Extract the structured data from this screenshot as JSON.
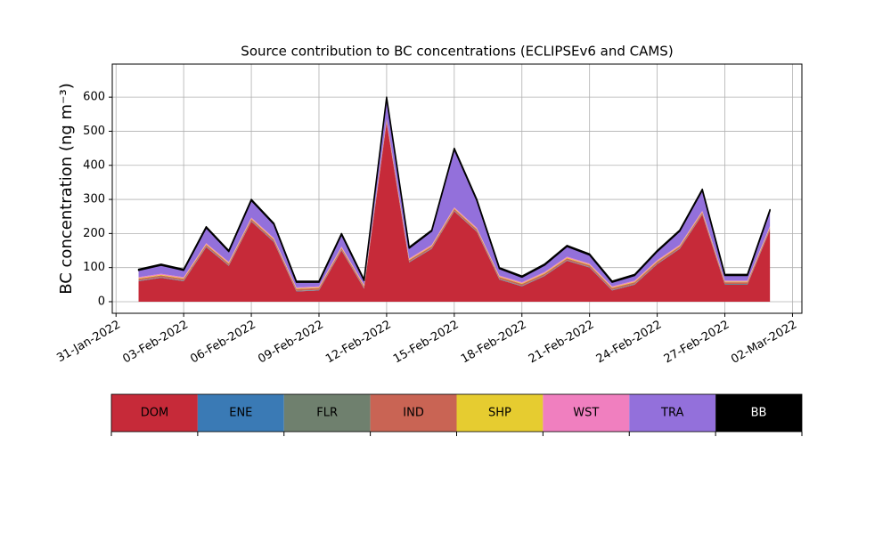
{
  "chart_data": {
    "type": "stacked_area",
    "title": "Source contribution to BC concentrations (ECLIPSEv6 and CAMS)",
    "ylabel": "BC concentration (ng m⁻³)",
    "x": [
      "2022-02-01",
      "2022-02-02",
      "2022-02-03",
      "2022-02-04",
      "2022-02-05",
      "2022-02-06",
      "2022-02-07",
      "2022-02-08",
      "2022-02-09",
      "2022-02-10",
      "2022-02-11",
      "2022-02-12",
      "2022-02-13",
      "2022-02-14",
      "2022-02-15",
      "2022-02-16",
      "2022-02-17",
      "2022-02-18",
      "2022-02-19",
      "2022-02-20",
      "2022-02-21",
      "2022-02-22",
      "2022-02-23",
      "2022-02-24",
      "2022-02-25",
      "2022-02-26",
      "2022-02-27",
      "2022-02-28",
      "2022-03-01"
    ],
    "series": [
      {
        "name": "DOM",
        "color": "#c62a39",
        "values": [
          60,
          70,
          60,
          160,
          105,
          235,
          175,
          30,
          33,
          150,
          38,
          525,
          115,
          155,
          265,
          205,
          65,
          45,
          75,
          120,
          100,
          33,
          50,
          110,
          155,
          255,
          50,
          50,
          210
        ]
      },
      {
        "name": "ENE",
        "color": "#3a7ab5",
        "values": [
          1,
          1,
          1,
          1,
          1,
          1,
          1,
          1,
          1,
          1,
          1,
          1,
          1,
          1,
          1,
          1,
          1,
          1,
          1,
          1,
          1,
          1,
          1,
          1,
          1,
          1,
          1,
          1,
          1
        ]
      },
      {
        "name": "FLR",
        "color": "#6f806e",
        "values": [
          1,
          1,
          1,
          1,
          1,
          1,
          1,
          1,
          1,
          1,
          1,
          1,
          1,
          1,
          1,
          1,
          1,
          1,
          1,
          1,
          1,
          1,
          1,
          1,
          1,
          1,
          1,
          1,
          1
        ]
      },
      {
        "name": "IND",
        "color": "#c96454",
        "values": [
          5,
          5,
          5,
          5,
          5,
          5,
          5,
          5,
          5,
          5,
          5,
          5,
          5,
          5,
          5,
          5,
          5,
          5,
          5,
          5,
          5,
          5,
          5,
          5,
          5,
          5,
          5,
          5,
          5
        ]
      },
      {
        "name": "SHP",
        "color": "#e6cc30",
        "values": [
          2,
          2,
          2,
          2,
          2,
          2,
          2,
          2,
          2,
          2,
          2,
          2,
          2,
          2,
          2,
          2,
          2,
          2,
          2,
          2,
          2,
          2,
          2,
          2,
          2,
          2,
          2,
          2,
          2
        ]
      },
      {
        "name": "WST",
        "color": "#f07fbf",
        "values": [
          3,
          3,
          3,
          3,
          3,
          3,
          3,
          3,
          3,
          3,
          3,
          3,
          3,
          3,
          3,
          3,
          3,
          3,
          3,
          3,
          3,
          3,
          3,
          3,
          3,
          3,
          3,
          3,
          3
        ]
      },
      {
        "name": "TRA",
        "color": "#9370db",
        "values": [
          20,
          25,
          20,
          45,
          30,
          50,
          40,
          15,
          12,
          35,
          12,
          60,
          30,
          40,
          170,
          80,
          20,
          15,
          20,
          30,
          25,
          12,
          15,
          25,
          40,
          60,
          15,
          15,
          45
        ]
      },
      {
        "name": "BB",
        "color": "#000000",
        "values": [
          3,
          3,
          3,
          3,
          3,
          3,
          3,
          3,
          3,
          3,
          3,
          3,
          3,
          3,
          3,
          3,
          3,
          3,
          3,
          3,
          3,
          3,
          3,
          3,
          3,
          3,
          3,
          3,
          3
        ]
      }
    ],
    "xlim": [
      "2022-01-30T20:00",
      "2022-03-02T10:00"
    ],
    "xticks": [
      {
        "value": "2022-01-31",
        "label": "31-Jan-2022"
      },
      {
        "value": "2022-02-03",
        "label": "03-Feb-2022"
      },
      {
        "value": "2022-02-06",
        "label": "06-Feb-2022"
      },
      {
        "value": "2022-02-09",
        "label": "09-Feb-2022"
      },
      {
        "value": "2022-02-12",
        "label": "12-Feb-2022"
      },
      {
        "value": "2022-02-15",
        "label": "15-Feb-2022"
      },
      {
        "value": "2022-02-18",
        "label": "18-Feb-2022"
      },
      {
        "value": "2022-02-21",
        "label": "21-Feb-2022"
      },
      {
        "value": "2022-02-24",
        "label": "24-Feb-2022"
      },
      {
        "value": "2022-02-27",
        "label": "27-Feb-2022"
      },
      {
        "value": "2022-03-02",
        "label": "02-Mar-2022"
      }
    ],
    "ylim": [
      -34,
      697
    ],
    "yticks": [
      0,
      100,
      200,
      300,
      400,
      500,
      600
    ],
    "grid": true
  }
}
